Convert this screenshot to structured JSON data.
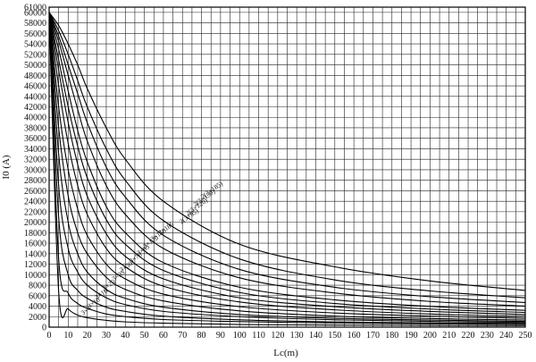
{
  "chart_data": {
    "type": "line",
    "title": "",
    "xlabel": "Lc(m)",
    "ylabel": "I0 (A)",
    "xlim": [
      0,
      250
    ],
    "ylim": [
      0,
      61000
    ],
    "grid": true,
    "x_ticks": [
      0,
      10,
      20,
      30,
      40,
      50,
      60,
      70,
      80,
      90,
      100,
      110,
      120,
      130,
      140,
      150,
      160,
      170,
      180,
      190,
      200,
      210,
      220,
      230,
      240,
      250
    ],
    "y_ticks": [
      0,
      2000,
      4000,
      6000,
      8000,
      10000,
      12000,
      14000,
      16000,
      18000,
      20000,
      22000,
      24000,
      26000,
      28000,
      30000,
      32000,
      34000,
      36000,
      38000,
      40000,
      42000,
      44000,
      46000,
      48000,
      50000,
      52000,
      54000,
      56000,
      58000,
      60000,
      61000
    ],
    "x_tick_labels": [
      "0",
      "10",
      "20",
      "30",
      "40",
      "50",
      "60",
      "70",
      "80",
      "90",
      "100",
      "110",
      "120",
      "130",
      "140",
      "150",
      "160",
      "170",
      "180",
      "190",
      "200",
      "210",
      "220",
      "230",
      "240",
      "250"
    ],
    "y_tick_labels": [
      "0",
      "2000",
      "4000",
      "6000",
      "8000",
      "10000",
      "12000",
      "14000",
      "16000",
      "18000",
      "20000",
      "22000",
      "24000",
      "26000",
      "28000",
      "30000",
      "32000",
      "34000",
      "36000",
      "38000",
      "40000",
      "42000",
      "44000",
      "46000",
      "48000",
      "50000",
      "52000",
      "54000",
      "56000",
      "58000",
      "60000",
      "61000"
    ],
    "series": [
      {
        "name": "3×4",
        "x": [
          0,
          5,
          10,
          15,
          20,
          30,
          40,
          60,
          100,
          150,
          200,
          250
        ],
        "values": [
          60000,
          6800,
          3500,
          2300,
          1800,
          1300,
          1000,
          750,
          500,
          400,
          330,
          280
        ]
      },
      {
        "name": "3×10",
        "x": [
          0,
          5,
          10,
          15,
          20,
          30,
          40,
          60,
          100,
          150,
          200,
          250
        ],
        "values": [
          60000,
          13000,
          6500,
          4500,
          3600,
          2500,
          2000,
          1450,
          1050,
          800,
          650,
          550
        ]
      },
      {
        "name": "3×16",
        "x": [
          0,
          5,
          10,
          15,
          20,
          30,
          40,
          60,
          100,
          150,
          200,
          250
        ],
        "values": [
          60000,
          21000,
          10000,
          7000,
          5500,
          3800,
          3000,
          2100,
          1400,
          1000,
          800,
          700
        ]
      },
      {
        "name": "3×25",
        "x": [
          0,
          5,
          10,
          15,
          20,
          30,
          40,
          60,
          100,
          150,
          200,
          250
        ],
        "values": [
          60000,
          27000,
          15000,
          10500,
          8000,
          5600,
          4300,
          3000,
          2000,
          1400,
          1100,
          900
        ]
      },
      {
        "name": "3×35",
        "x": [
          0,
          5,
          10,
          15,
          20,
          30,
          40,
          60,
          100,
          150,
          200,
          250
        ],
        "values": [
          60000,
          33000,
          20000,
          14000,
          10500,
          7200,
          5500,
          3800,
          2400,
          1700,
          1350,
          1100
        ]
      },
      {
        "name": "3×50",
        "x": [
          0,
          5,
          10,
          15,
          20,
          30,
          40,
          60,
          100,
          150,
          200,
          250
        ],
        "values": [
          60000,
          38000,
          25000,
          18000,
          14000,
          9500,
          7200,
          5000,
          3100,
          2100,
          1650,
          1350
        ]
      },
      {
        "name": "3×70",
        "x": [
          0,
          5,
          10,
          15,
          20,
          30,
          40,
          60,
          100,
          150,
          200,
          250
        ],
        "values": [
          60000,
          42000,
          30000,
          22500,
          17500,
          12000,
          9200,
          6300,
          3900,
          2700,
          2100,
          1700
        ]
      },
      {
        "name": "3×95",
        "x": [
          0,
          5,
          10,
          15,
          20,
          30,
          40,
          60,
          100,
          150,
          200,
          250
        ],
        "values": [
          60000,
          46000,
          35000,
          27000,
          21500,
          15000,
          11500,
          7800,
          4800,
          3300,
          2500,
          2050
        ]
      },
      {
        "name": "3×120",
        "x": [
          0,
          5,
          10,
          15,
          20,
          30,
          40,
          60,
          100,
          150,
          200,
          250
        ],
        "values": [
          60000,
          49000,
          39000,
          31000,
          25000,
          17800,
          13500,
          9200,
          5600,
          3900,
          3000,
          2400
        ]
      },
      {
        "name": "3×150",
        "x": [
          0,
          5,
          10,
          15,
          20,
          30,
          40,
          60,
          100,
          150,
          200,
          250
        ],
        "values": [
          60000,
          51000,
          42000,
          34500,
          28500,
          20500,
          15800,
          10800,
          6600,
          4500,
          3450,
          2800
        ]
      },
      {
        "name": "3×185",
        "x": [
          0,
          5,
          10,
          15,
          20,
          30,
          40,
          60,
          100,
          150,
          200,
          250
        ],
        "values": [
          60000,
          53000,
          45000,
          37500,
          31500,
          23000,
          18000,
          12300,
          7600,
          5200,
          3950,
          3200
        ]
      },
      {
        "name": "2(3×95)",
        "x": [
          0,
          5,
          10,
          15,
          20,
          30,
          40,
          60,
          100,
          150,
          200,
          250
        ],
        "values": [
          60000,
          54500,
          48000,
          41500,
          35500,
          27000,
          21500,
          15000,
          9400,
          6500,
          4900,
          4000
        ]
      },
      {
        "name": "2(3×120)",
        "x": [
          0,
          5,
          10,
          15,
          20,
          30,
          40,
          60,
          100,
          150,
          200,
          250
        ],
        "values": [
          60000,
          55500,
          50000,
          44500,
          39000,
          30500,
          24800,
          17500,
          11000,
          7600,
          5800,
          4700
        ]
      },
      {
        "name": "2(3×150)",
        "x": [
          0,
          5,
          10,
          15,
          20,
          30,
          40,
          60,
          100,
          150,
          200,
          250
        ],
        "values": [
          60000,
          56500,
          52000,
          47000,
          42000,
          34000,
          28000,
          20300,
          13000,
          9000,
          6900,
          5600
        ]
      },
      {
        "name": "2(3×185)",
        "x": [
          0,
          5,
          10,
          15,
          20,
          30,
          40,
          60,
          100,
          150,
          200,
          250
        ],
        "values": [
          60000,
          57500,
          54000,
          50000,
          45500,
          38000,
          32000,
          24000,
          15800,
          11500,
          8800,
          7000
        ]
      }
    ],
    "curve_labels": [
      {
        "text": "2(3×185)",
        "x": 86,
        "y": 25800
      },
      {
        "text": "2(3×150)",
        "x": 82,
        "y": 24300
      },
      {
        "text": "2(3×120)",
        "x": 78,
        "y": 22600
      },
      {
        "text": "2(3×95)",
        "x": 74,
        "y": 20800
      },
      {
        "text": "3×185",
        "x": 62,
        "y": 18500
      },
      {
        "text": "3×150",
        "x": 58,
        "y": 17300
      },
      {
        "text": "3×120",
        "x": 54,
        "y": 15900
      },
      {
        "text": "3×95",
        "x": 50,
        "y": 14400
      },
      {
        "text": "3×70",
        "x": 46,
        "y": 12900
      },
      {
        "text": "3×50",
        "x": 41,
        "y": 11200
      },
      {
        "text": "3×35",
        "x": 37,
        "y": 9500
      },
      {
        "text": "3×25",
        "x": 32,
        "y": 7700
      },
      {
        "text": "3×16",
        "x": 28,
        "y": 6000
      },
      {
        "text": "3×10",
        "x": 24,
        "y": 4300
      },
      {
        "text": "3×4",
        "x": 20,
        "y": 2800
      }
    ]
  }
}
